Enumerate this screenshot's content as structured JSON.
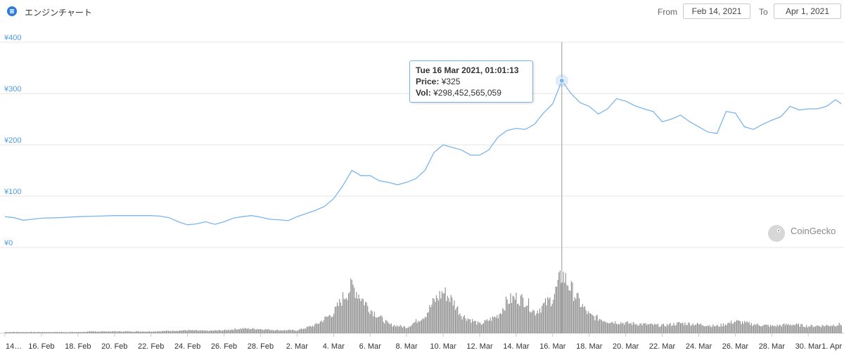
{
  "header": {
    "title": "エンジンチャート",
    "from_label": "From",
    "from_value": "Feb 14, 2021",
    "to_label": "To",
    "to_value": "Apr 1, 2021"
  },
  "tooltip": {
    "date": "Tue 16 Mar 2021, 01:01:13",
    "price_label": "Price:",
    "price_value": "¥325",
    "vol_label": "Vol:",
    "vol_value": "¥298,452,565,059"
  },
  "watermark": "CoinGecko",
  "icons": {
    "logo": "enjin-logo-icon",
    "watermark": "coingecko-gecko-icon"
  },
  "colors": {
    "line": "#7cb5ec",
    "axis_label": "#4a9be8",
    "volume": "#8a8a8a",
    "grid": "#e6e6e6"
  },
  "chart_data": {
    "type": "line",
    "title": "エンジンチャート",
    "currency": "¥",
    "y_ticks": [
      "¥0",
      "¥100",
      "¥200",
      "¥300",
      "¥400"
    ],
    "ylim": [
      0,
      400
    ],
    "x_tick_labels": [
      "14…",
      "16. Feb",
      "18. Feb",
      "20. Feb",
      "22. Feb",
      "24. Feb",
      "26. Feb",
      "28. Feb",
      "2. Mar",
      "4. Mar",
      "6. Mar",
      "8. Mar",
      "10. Mar",
      "12. Mar",
      "14. Mar",
      "16. Mar",
      "18. Mar",
      "20. Mar",
      "22. Mar",
      "24. Mar",
      "26. Mar",
      "28. Mar",
      "30. Mar",
      "1. Apr"
    ],
    "x_range_days": [
      0,
      45.8
    ],
    "grid": true,
    "series": [
      {
        "name": "Price",
        "points": [
          [
            0,
            60
          ],
          [
            0.5,
            58
          ],
          [
            1,
            53
          ],
          [
            1.5,
            55
          ],
          [
            2,
            57
          ],
          [
            3,
            58
          ],
          [
            4,
            60
          ],
          [
            5,
            61
          ],
          [
            6,
            62
          ],
          [
            7,
            62
          ],
          [
            8,
            62
          ],
          [
            8.5,
            61
          ],
          [
            9,
            58
          ],
          [
            9.5,
            50
          ],
          [
            10,
            44
          ],
          [
            10.5,
            46
          ],
          [
            11,
            50
          ],
          [
            11.5,
            45
          ],
          [
            12,
            50
          ],
          [
            12.5,
            57
          ],
          [
            13,
            60
          ],
          [
            13.5,
            62
          ],
          [
            14,
            59
          ],
          [
            14.5,
            55
          ],
          [
            15,
            54
          ],
          [
            15.5,
            52
          ],
          [
            16,
            60
          ],
          [
            16.5,
            66
          ],
          [
            17,
            72
          ],
          [
            17.5,
            80
          ],
          [
            18,
            95
          ],
          [
            18.5,
            120
          ],
          [
            19,
            150
          ],
          [
            19.5,
            140
          ],
          [
            20,
            140
          ],
          [
            20.5,
            130
          ],
          [
            21,
            127
          ],
          [
            21.5,
            122
          ],
          [
            22,
            127
          ],
          [
            22.5,
            134
          ],
          [
            23,
            150
          ],
          [
            23.5,
            185
          ],
          [
            24,
            200
          ],
          [
            24.5,
            195
          ],
          [
            25,
            190
          ],
          [
            25.5,
            180
          ],
          [
            26,
            180
          ],
          [
            26.5,
            190
          ],
          [
            27,
            215
          ],
          [
            27.5,
            228
          ],
          [
            28,
            232
          ],
          [
            28.5,
            230
          ],
          [
            29,
            240
          ],
          [
            29.5,
            262
          ],
          [
            30,
            280
          ],
          [
            30.5,
            325
          ],
          [
            31,
            300
          ],
          [
            31.5,
            282
          ],
          [
            32,
            275
          ],
          [
            32.5,
            260
          ],
          [
            33,
            270
          ],
          [
            33.5,
            290
          ],
          [
            34,
            285
          ],
          [
            34.5,
            276
          ],
          [
            35,
            270
          ],
          [
            35.5,
            265
          ],
          [
            36,
            245
          ],
          [
            36.5,
            250
          ],
          [
            37,
            258
          ],
          [
            37.5,
            245
          ],
          [
            38,
            235
          ],
          [
            38.5,
            225
          ],
          [
            39,
            222
          ],
          [
            39.5,
            265
          ],
          [
            40,
            262
          ],
          [
            40.5,
            235
          ],
          [
            41,
            230
          ],
          [
            41.5,
            240
          ],
          [
            42,
            248
          ],
          [
            42.5,
            255
          ],
          [
            43,
            275
          ],
          [
            43.5,
            268
          ],
          [
            44,
            270
          ],
          [
            44.5,
            270
          ],
          [
            45,
            275
          ],
          [
            45.5,
            288
          ],
          [
            45.8,
            280
          ]
        ]
      },
      {
        "name": "Volume",
        "points": [
          [
            0,
            0.02
          ],
          [
            1,
            0.02
          ],
          [
            2,
            0.02
          ],
          [
            3,
            0.02
          ],
          [
            4,
            0.02
          ],
          [
            5,
            0.03
          ],
          [
            6,
            0.03
          ],
          [
            7,
            0.03
          ],
          [
            8,
            0.03
          ],
          [
            9,
            0.04
          ],
          [
            10,
            0.05
          ],
          [
            11,
            0.04
          ],
          [
            12,
            0.05
          ],
          [
            13,
            0.08
          ],
          [
            14,
            0.07
          ],
          [
            15,
            0.05
          ],
          [
            16,
            0.05
          ],
          [
            17,
            0.14
          ],
          [
            18,
            0.35
          ],
          [
            18.5,
            0.6
          ],
          [
            19,
            0.8
          ],
          [
            19.5,
            0.6
          ],
          [
            20,
            0.4
          ],
          [
            21,
            0.15
          ],
          [
            22,
            0.1
          ],
          [
            23,
            0.3
          ],
          [
            23.5,
            0.55
          ],
          [
            24,
            0.7
          ],
          [
            24.5,
            0.55
          ],
          [
            25,
            0.3
          ],
          [
            26,
            0.15
          ],
          [
            27,
            0.3
          ],
          [
            27.5,
            0.55
          ],
          [
            28,
            0.6
          ],
          [
            28.5,
            0.55
          ],
          [
            29,
            0.35
          ],
          [
            30,
            0.6
          ],
          [
            30.5,
            1.0
          ],
          [
            31,
            0.75
          ],
          [
            31.5,
            0.5
          ],
          [
            32,
            0.3
          ],
          [
            33,
            0.2
          ],
          [
            34,
            0.17
          ],
          [
            35,
            0.15
          ],
          [
            36,
            0.13
          ],
          [
            37,
            0.17
          ],
          [
            38,
            0.15
          ],
          [
            39,
            0.12
          ],
          [
            40,
            0.2
          ],
          [
            41,
            0.15
          ],
          [
            42,
            0.12
          ],
          [
            43,
            0.15
          ],
          [
            44,
            0.12
          ],
          [
            45,
            0.13
          ],
          [
            45.8,
            0.15
          ]
        ]
      }
    ],
    "highlight": {
      "x_day": 30.5,
      "y": 325
    }
  }
}
